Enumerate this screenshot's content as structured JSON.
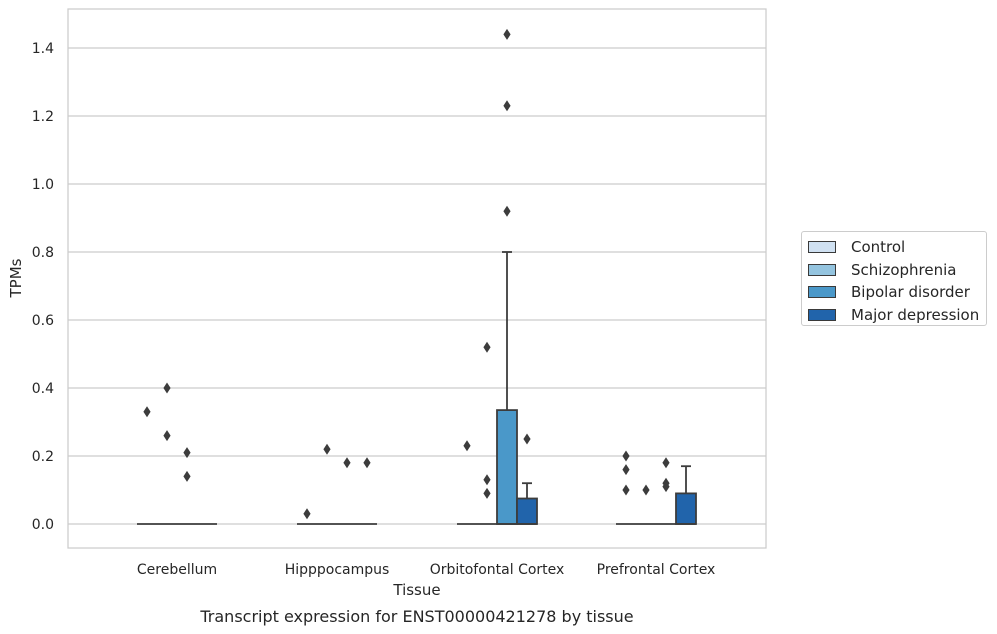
{
  "chart_data": {
    "type": "box",
    "title": "Transcript expression for ENST00000421278 by tissue",
    "xlabel": "Tissue",
    "ylabel": "TPMs",
    "ylim": [
      -0.07,
      1.52
    ],
    "yticks": [
      0.0,
      0.2,
      0.4,
      0.6,
      0.8,
      1.0,
      1.2,
      1.4
    ],
    "ytick_labels": [
      "0.0",
      "0.2",
      "0.4",
      "0.6",
      "0.8",
      "1.0",
      "1.2",
      "1.4"
    ],
    "grid": true,
    "legend_position": "right",
    "categories": [
      "Cerebellum",
      "Hipppocampus",
      "Orbitofontal Cortex",
      "Prefrontal Cortex"
    ],
    "series": [
      {
        "name": "Control",
        "color": "#d0e1f2",
        "boxes": [
          {
            "q1": 0,
            "median": 0,
            "q3": 0,
            "whisker_low": 0,
            "whisker_high": 0,
            "outliers": [
              0.33
            ]
          },
          {
            "q1": 0,
            "median": 0,
            "q3": 0,
            "whisker_low": 0,
            "whisker_high": 0,
            "outliers": [
              0.03
            ]
          },
          {
            "q1": 0,
            "median": 0,
            "q3": 0,
            "whisker_low": 0,
            "whisker_high": 0,
            "outliers": [
              0.23
            ]
          },
          {
            "q1": 0,
            "median": 0,
            "q3": 0,
            "whisker_low": 0,
            "whisker_high": 0,
            "outliers": [
              0.2,
              0.16,
              0.1
            ]
          }
        ]
      },
      {
        "name": "Schizophrenia",
        "color": "#94c4df",
        "boxes": [
          {
            "q1": 0,
            "median": 0,
            "q3": 0,
            "whisker_low": 0,
            "whisker_high": 0,
            "outliers": [
              0.4,
              0.26
            ]
          },
          {
            "q1": 0,
            "median": 0,
            "q3": 0,
            "whisker_low": 0,
            "whisker_high": 0,
            "outliers": [
              0.22
            ]
          },
          {
            "q1": 0,
            "median": 0,
            "q3": 0,
            "whisker_low": 0,
            "whisker_high": 0,
            "outliers": [
              0.52,
              0.13,
              0.09
            ]
          },
          {
            "q1": 0,
            "median": 0,
            "q3": 0,
            "whisker_low": 0,
            "whisker_high": 0,
            "outliers": [
              0.1
            ]
          }
        ]
      },
      {
        "name": "Bipolar disorder",
        "color": "#4a98c9",
        "boxes": [
          {
            "q1": 0,
            "median": 0,
            "q3": 0,
            "whisker_low": 0,
            "whisker_high": 0,
            "outliers": [
              0.21,
              0.14
            ]
          },
          {
            "q1": 0,
            "median": 0,
            "q3": 0,
            "whisker_low": 0,
            "whisker_high": 0,
            "outliers": [
              0.18
            ]
          },
          {
            "q1": 0,
            "median": 0,
            "q3": 0.335,
            "whisker_low": 0,
            "whisker_high": 0.8,
            "outliers": [
              1.44,
              1.23,
              0.92
            ]
          },
          {
            "q1": 0,
            "median": 0,
            "q3": 0,
            "whisker_low": 0,
            "whisker_high": 0,
            "outliers": [
              0.18,
              0.12,
              0.11
            ]
          }
        ]
      },
      {
        "name": "Major depression",
        "color": "#2164ab",
        "boxes": [
          {
            "q1": 0,
            "median": 0,
            "q3": 0,
            "whisker_low": 0,
            "whisker_high": 0,
            "outliers": []
          },
          {
            "q1": 0,
            "median": 0,
            "q3": 0,
            "whisker_low": 0,
            "whisker_high": 0,
            "outliers": [
              0.18
            ]
          },
          {
            "q1": 0,
            "median": 0,
            "q3": 0.075,
            "whisker_low": 0,
            "whisker_high": 0.12,
            "outliers": [
              0.25
            ]
          },
          {
            "q1": 0,
            "median": 0,
            "q3": 0.09,
            "whisker_low": 0,
            "whisker_high": 0.17,
            "outliers": []
          }
        ]
      }
    ]
  }
}
